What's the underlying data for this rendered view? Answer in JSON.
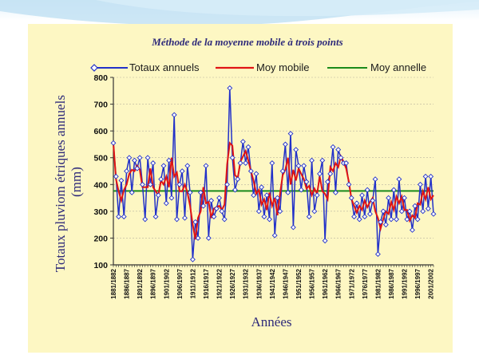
{
  "colors": {
    "panel": "#fdf7c3",
    "annual": "#2231c9",
    "moving": "#e01414",
    "mean": "#1b8a1b",
    "title": "#2e2a7a"
  },
  "chart_data": {
    "type": "line",
    "title": "Méthode de la moyenne mobile à trois points",
    "xlabel": "Années",
    "ylabel": "Totaux pluviom étriques annuels (mm)",
    "ylim": [
      100,
      800
    ],
    "yticks": [
      100,
      200,
      300,
      400,
      500,
      600,
      700,
      800
    ],
    "xtick_labels": [
      "1881/1882",
      "1886/1887",
      "1891/1892",
      "1896/1897",
      "1901/1902",
      "1906/1907",
      "1911/1912",
      "1916/1917",
      "1921/1922",
      "1926/1927",
      "1931/1932",
      "1936/1937",
      "1941/1942",
      "1946/1947",
      "1951/1952",
      "1956/1957",
      "1961/1962",
      "1966/1967",
      "1971/1972",
      "1976/1977",
      "1981/1982",
      "1986/1987",
      "1991/1992",
      "1996/1997",
      "2001/2002"
    ],
    "legend_position": "top",
    "grid": "horizontal",
    "x": [
      1882,
      1883,
      1884,
      1885,
      1886,
      1887,
      1888,
      1889,
      1890,
      1891,
      1892,
      1893,
      1894,
      1895,
      1896,
      1897,
      1898,
      1899,
      1900,
      1901,
      1902,
      1903,
      1904,
      1905,
      1906,
      1907,
      1908,
      1909,
      1910,
      1911,
      1912,
      1913,
      1914,
      1915,
      1916,
      1917,
      1918,
      1919,
      1920,
      1921,
      1922,
      1923,
      1924,
      1925,
      1926,
      1927,
      1928,
      1929,
      1930,
      1931,
      1932,
      1933,
      1934,
      1935,
      1936,
      1937,
      1938,
      1939,
      1940,
      1941,
      1942,
      1943,
      1944,
      1945,
      1946,
      1947,
      1948,
      1949,
      1950,
      1951,
      1952,
      1953,
      1954,
      1955,
      1956,
      1957,
      1958,
      1959,
      1960,
      1961,
      1962,
      1963,
      1964,
      1965,
      1966,
      1967,
      1968,
      1969,
      1970,
      1971,
      1972,
      1973,
      1974,
      1975,
      1976,
      1977,
      1978,
      1979,
      1980,
      1981,
      1982,
      1983,
      1984,
      1985,
      1986,
      1987,
      1988,
      1989,
      1990,
      1991,
      1992,
      1993,
      1994,
      1995,
      1996,
      1997,
      1998,
      1999,
      2000,
      2001,
      2002,
      2003
    ],
    "series": [
      {
        "name": "Totaux annuels",
        "marker": "diamond",
        "values": [
          555,
          430,
          280,
          415,
          280,
          450,
          500,
          370,
          490,
          460,
          500,
          400,
          270,
          500,
          400,
          480,
          280,
          360,
          420,
          470,
          330,
          490,
          350,
          660,
          270,
          400,
          450,
          275,
          470,
          370,
          120,
          260,
          200,
          370,
          320,
          470,
          200,
          340,
          280,
          310,
          350,
          300,
          270,
          400,
          760,
          500,
          380,
          420,
          480,
          560,
          480,
          540,
          450,
          360,
          440,
          300,
          390,
          280,
          360,
          270,
          480,
          210,
          350,
          300,
          450,
          550,
          370,
          590,
          240,
          530,
          470,
          380,
          470,
          410,
          280,
          490,
          300,
          360,
          440,
          490,
          190,
          410,
          440,
          540,
          370,
          530,
          500,
          480,
          480,
          400,
          350,
          280,
          330,
          270,
          360,
          280,
          380,
          290,
          340,
          420,
          140,
          260,
          300,
          250,
          350,
          270,
          380,
          270,
          420,
          300,
          350,
          270,
          300,
          230,
          320,
          270,
          400,
          300,
          430,
          310,
          430,
          290
        ]
      },
      {
        "name": "Moy mobile",
        "values": [
          555,
          420,
          375,
          340,
          380,
          400,
          440,
          455,
          450,
          470,
          455,
          390,
          390,
          390,
          460,
          390,
          375,
          360,
          415,
          400,
          430,
          390,
          500,
          430,
          445,
          375,
          375,
          400,
          370,
          320,
          250,
          195,
          275,
          300,
          390,
          330,
          335,
          275,
          310,
          315,
          320,
          305,
          325,
          475,
          555,
          545,
          435,
          425,
          485,
          505,
          525,
          490,
          450,
          415,
          365,
          380,
          325,
          345,
          305,
          370,
          320,
          350,
          285,
          365,
          435,
          455,
          500,
          400,
          455,
          415,
          460,
          440,
          420,
          385,
          395,
          360,
          385,
          365,
          430,
          375,
          365,
          345,
          465,
          450,
          480,
          465,
          505,
          485,
          460,
          410,
          345,
          320,
          295,
          320,
          305,
          340,
          315,
          335,
          350,
          300,
          275,
          235,
          270,
          300,
          290,
          335,
          305,
          355,
          330,
          355,
          305,
          305,
          265,
          285,
          275,
          330,
          325,
          375,
          345,
          390,
          345,
          360
        ]
      },
      {
        "name": "Moy annelle",
        "value": 376
      }
    ]
  }
}
